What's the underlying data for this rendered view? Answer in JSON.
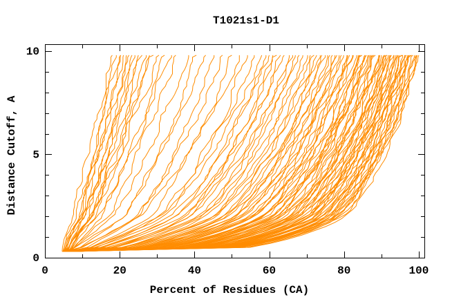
{
  "title": "T1021s1-D1",
  "chart_data": {
    "type": "line",
    "title": "T1021s1-D1",
    "xlabel": "Percent of Residues (CA)",
    "ylabel": "Distance Cutoff, A",
    "xlim": [
      0,
      101.5
    ],
    "ylim": [
      0,
      10.33
    ],
    "xticks_major": [
      0,
      20,
      40,
      60,
      80,
      100
    ],
    "xticks_minor": [
      10,
      30,
      50,
      70,
      90
    ],
    "yticks_major": [
      0,
      5,
      10
    ],
    "yticks_minor": [
      1,
      2,
      3,
      4,
      6,
      7,
      8,
      9
    ],
    "grid": false,
    "legend": "none",
    "line_color": "#FF8C00",
    "curve_start_cutoff": 0.3,
    "curve_end_cutoff": 9.8,
    "series_format": [
      "percent_at_max_cutoff",
      "shape_exponent",
      "percent_at_min_cutoff"
    ],
    "series": [
      [
        18,
        1.05,
        4.6
      ],
      [
        18.8,
        1.2,
        5.4
      ],
      [
        19.5,
        1.1,
        4.8
      ],
      [
        20.3,
        1.3,
        6.0
      ],
      [
        21,
        1.15,
        5.2
      ],
      [
        21.8,
        1.4,
        6.5
      ],
      [
        22.5,
        1.1,
        5.0
      ],
      [
        23.3,
        1.25,
        5.8
      ],
      [
        24,
        1.5,
        6.2
      ],
      [
        25,
        1.2,
        5.4
      ],
      [
        26,
        1.35,
        6.8
      ],
      [
        27,
        1.15,
        5.1
      ],
      [
        28,
        1.45,
        6.4
      ],
      [
        29,
        1.3,
        5.6
      ],
      [
        30.5,
        1.2,
        5.9
      ],
      [
        32,
        1.5,
        6.6
      ],
      [
        33.5,
        1.35,
        5.3
      ],
      [
        35,
        1.6,
        6.1
      ],
      [
        38,
        1.7,
        5.5
      ],
      [
        40.5,
        1.9,
        6.3
      ],
      [
        43,
        1.8,
        5.0
      ],
      [
        45,
        2.1,
        6.7
      ],
      [
        47.5,
        2.0,
        5.6
      ],
      [
        50,
        2.3,
        6.0
      ],
      [
        52,
        1.9,
        5.2
      ],
      [
        54,
        2.4,
        6.5
      ],
      [
        56,
        2.2,
        5.8
      ],
      [
        58,
        2.3,
        5.0
      ],
      [
        59,
        2.6,
        6.2
      ],
      [
        60,
        2.4,
        4.7
      ],
      [
        61,
        2.8,
        7.0
      ],
      [
        62,
        2.5,
        5.5
      ],
      [
        63,
        2.9,
        6.6
      ],
      [
        64,
        2.6,
        4.9
      ],
      [
        65,
        3.1,
        7.4
      ],
      [
        66,
        2.7,
        5.2
      ],
      [
        67,
        3.2,
        6.0
      ],
      [
        68,
        2.8,
        5.0
      ],
      [
        69,
        3.3,
        6.2
      ],
      [
        70,
        2.9,
        4.7
      ],
      [
        71,
        3.5,
        7.0
      ],
      [
        72,
        3.0,
        5.5
      ],
      [
        72.7,
        3.6,
        6.6
      ],
      [
        73.4,
        3.1,
        4.9
      ],
      [
        74.1,
        3.7,
        7.4
      ],
      [
        74.8,
        3.2,
        5.2
      ],
      [
        75.5,
        3.8,
        6.0
      ],
      [
        76.2,
        3.3,
        5.0
      ],
      [
        76.9,
        3.9,
        6.2
      ],
      [
        77.5,
        3.4,
        4.7
      ],
      [
        78.1,
        4.0,
        7.0
      ],
      [
        78.7,
        3.5,
        5.5
      ],
      [
        79.3,
        4.1,
        6.6
      ],
      [
        79.9,
        3.6,
        4.9
      ],
      [
        80.5,
        4.2,
        7.4
      ],
      [
        81,
        3.7,
        5.2
      ],
      [
        81.5,
        4.3,
        6.0
      ],
      [
        82,
        3.8,
        5.0
      ],
      [
        82.5,
        4.4,
        6.2
      ],
      [
        83,
        3.9,
        4.7
      ],
      [
        83.5,
        4.5,
        7.0
      ],
      [
        84,
        4.0,
        5.5
      ],
      [
        84.4,
        4.6,
        6.6
      ],
      [
        84.8,
        4.1,
        4.9
      ],
      [
        85.2,
        4.7,
        7.4
      ],
      [
        85.6,
        4.2,
        5.2
      ],
      [
        86,
        4.8,
        6.0
      ],
      [
        86.4,
        4.3,
        5.0
      ],
      [
        86.8,
        4.9,
        6.2
      ],
      [
        87.2,
        4.4,
        4.7
      ],
      [
        87.6,
        5.0,
        7.0
      ],
      [
        88,
        4.5,
        5.5
      ],
      [
        88.4,
        5.1,
        6.6
      ],
      [
        88.8,
        4.6,
        4.9
      ],
      [
        89.2,
        5.2,
        7.4
      ],
      [
        89.6,
        4.7,
        5.2
      ],
      [
        90,
        5.3,
        6.0
      ],
      [
        90.3,
        4.8,
        5.0
      ],
      [
        90.6,
        5.4,
        6.2
      ],
      [
        90.9,
        4.9,
        4.7
      ],
      [
        91.2,
        5.5,
        7.0
      ],
      [
        91.5,
        5.0,
        5.5
      ],
      [
        91.8,
        5.6,
        6.6
      ],
      [
        92.1,
        5.1,
        4.9
      ],
      [
        92.4,
        5.7,
        7.4
      ],
      [
        92.7,
        5.2,
        5.2
      ],
      [
        93,
        5.8,
        6.0
      ],
      [
        93.3,
        5.3,
        5.0
      ],
      [
        93.6,
        5.9,
        6.2
      ],
      [
        93.9,
        5.4,
        4.7
      ],
      [
        94.2,
        6.0,
        7.0
      ],
      [
        94.5,
        5.5,
        5.5
      ],
      [
        94.8,
        6.1,
        6.6
      ],
      [
        95.1,
        5.6,
        4.9
      ],
      [
        95.4,
        6.2,
        7.4
      ],
      [
        95.7,
        5.7,
        5.2
      ],
      [
        96,
        6.3,
        6.0
      ],
      [
        96.3,
        5.8,
        5.0
      ],
      [
        96.6,
        6.4,
        6.2
      ],
      [
        96.9,
        5.9,
        4.7
      ],
      [
        97.2,
        6.5,
        7.0
      ],
      [
        97.5,
        6.0,
        5.5
      ],
      [
        97.8,
        6.6,
        6.6
      ],
      [
        98.1,
        6.1,
        4.9
      ],
      [
        98.4,
        6.7,
        7.4
      ],
      [
        98.7,
        6.2,
        5.2
      ],
      [
        99,
        6.8,
        6.0
      ],
      [
        99.3,
        6.3,
        5.0
      ],
      [
        99.6,
        6.9,
        6.2
      ],
      [
        100,
        6.0,
        4.7
      ]
    ]
  }
}
